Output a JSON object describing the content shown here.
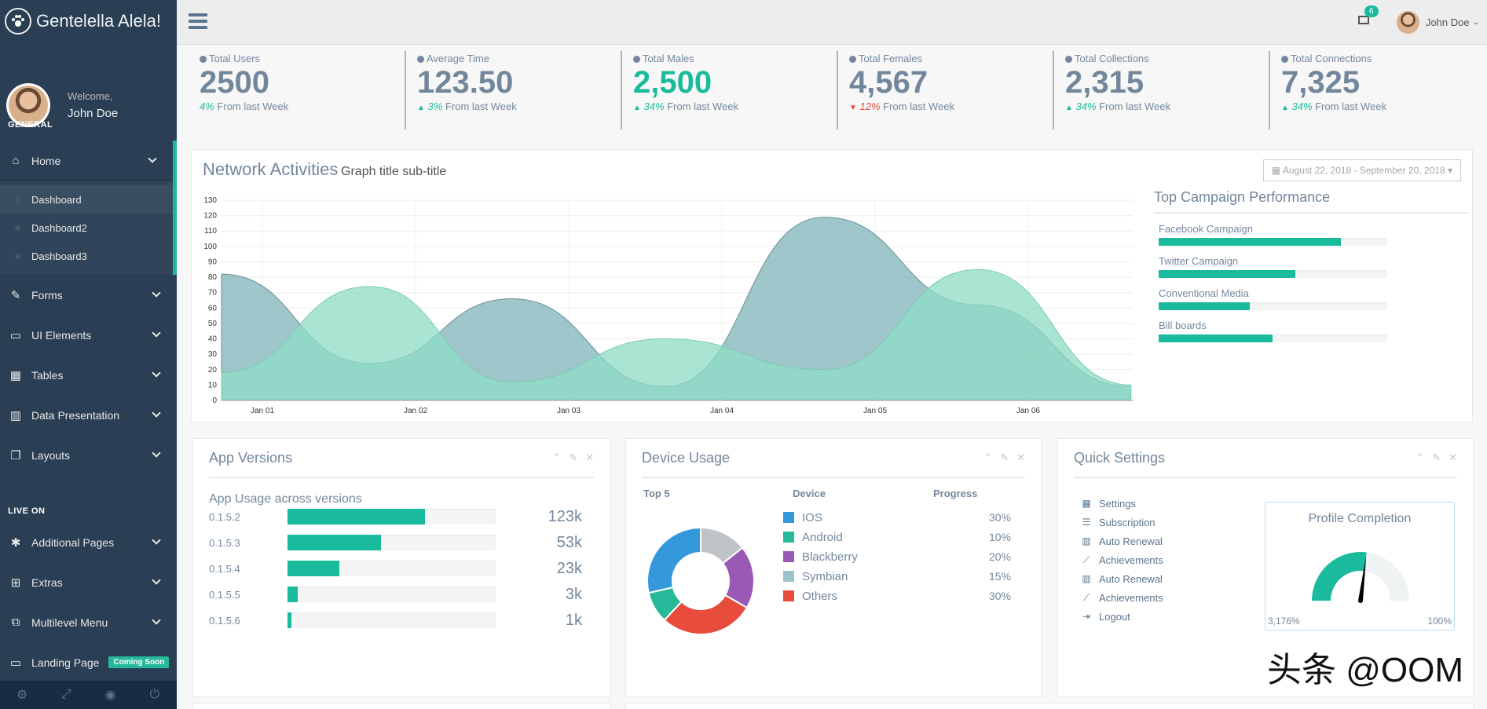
{
  "brand": {
    "title": "Gentelella Alela!"
  },
  "profile": {
    "welcome": "Welcome,",
    "name": "John Doe"
  },
  "sidebar": {
    "general_title": "GENERAL",
    "live_title": "LIVE ON",
    "home": {
      "label": "Home",
      "icon": "home-icon"
    },
    "home_sub": [
      {
        "label": "Dashboard"
      },
      {
        "label": "Dashboard2"
      },
      {
        "label": "Dashboard3"
      }
    ],
    "general_items": [
      {
        "label": "Forms",
        "icon": "edit-icon"
      },
      {
        "label": "UI Elements",
        "icon": "desktop-icon"
      },
      {
        "label": "Tables",
        "icon": "table-icon"
      },
      {
        "label": "Data Presentation",
        "icon": "bar-chart-icon"
      },
      {
        "label": "Layouts",
        "icon": "clone-icon"
      }
    ],
    "live_items": [
      {
        "label": "Additional Pages",
        "icon": "bug-icon"
      },
      {
        "label": "Extras",
        "icon": "windows-icon"
      },
      {
        "label": "Multilevel Menu",
        "icon": "sitemap-icon"
      }
    ],
    "landing": {
      "label": "Landing Page",
      "badge": "Coming Soon",
      "icon": "laptop-icon"
    },
    "footer_icons": [
      "settings-icon",
      "fullscreen-icon",
      "lock-icon",
      "logout-icon"
    ]
  },
  "topnav": {
    "mail_count": "6",
    "user": "John Doe"
  },
  "tiles": [
    {
      "label": "Total Users",
      "value": "2500",
      "change": "4%",
      "suffix": "From last Week",
      "trend": "none"
    },
    {
      "label": "Average Time",
      "value": "123.50",
      "change": "3%",
      "suffix": "From last Week",
      "trend": "up"
    },
    {
      "label": "Total Males",
      "value": "2,500",
      "change": "34%",
      "suffix": "From last Week",
      "trend": "up"
    },
    {
      "label": "Total Females",
      "value": "4,567",
      "change": "12%",
      "suffix": "From last Week",
      "trend": "down"
    },
    {
      "label": "Total Collections",
      "value": "2,315",
      "change": "34%",
      "suffix": "From last Week",
      "trend": "up"
    },
    {
      "label": "Total Connections",
      "value": "7,325",
      "change": "34%",
      "suffix": "From last Week",
      "trend": "up"
    }
  ],
  "network": {
    "title": "Network Activities",
    "subtitle": "Graph title sub-title",
    "daterange": "August 22, 2018 - September 20, 2018"
  },
  "chart_data": {
    "type": "area",
    "x": [
      "Jan 01",
      "Jan 02",
      "Jan 03",
      "Jan 04",
      "Jan 05",
      "Jan 06"
    ],
    "yticks": [
      0,
      10,
      20,
      30,
      40,
      50,
      60,
      70,
      80,
      90,
      100,
      110,
      120,
      130
    ],
    "ylim": [
      0,
      130
    ],
    "series": [
      {
        "color": "#7FB3B8",
        "points": [
          [
            -0.33,
            82
          ],
          [
            0.7,
            24
          ],
          [
            1.63,
            66
          ],
          [
            2.63,
            9
          ],
          [
            3.67,
            119
          ],
          [
            4.67,
            62
          ],
          [
            5.67,
            9
          ]
        ]
      },
      {
        "color": "#8EDCC6",
        "points": [
          [
            -0.33,
            18
          ],
          [
            0.7,
            74
          ],
          [
            1.63,
            12
          ],
          [
            2.63,
            40
          ],
          [
            3.67,
            20
          ],
          [
            4.67,
            85
          ],
          [
            5.67,
            10
          ]
        ]
      }
    ]
  },
  "campaigns": {
    "title": "Top Campaign Performance",
    "items": [
      {
        "label": "Facebook Campaign",
        "value": 80
      },
      {
        "label": "Twitter Campaign",
        "value": 60
      },
      {
        "label": "Conventional Media",
        "value": 40
      },
      {
        "label": "Bill boards",
        "value": 50
      }
    ]
  },
  "app_versions": {
    "title": "App Versions",
    "subtitle": "App Usage across versions",
    "rows": [
      {
        "version": "0.1.5.2",
        "count": "123k",
        "percent": 66
      },
      {
        "version": "0.1.5.3",
        "count": "53k",
        "percent": 45
      },
      {
        "version": "0.1.5.4",
        "count": "23k",
        "percent": 25
      },
      {
        "version": "0.1.5.5",
        "count": "3k",
        "percent": 5
      },
      {
        "version": "0.1.5.6",
        "count": "1k",
        "percent": 2
      }
    ]
  },
  "device_usage": {
    "title": "Device Usage",
    "headers": {
      "top": "Top 5",
      "device": "Device",
      "progress": "Progress"
    },
    "rows": [
      {
        "name": "IOS",
        "percent": "30%",
        "color": "#3498DB"
      },
      {
        "name": "Android",
        "percent": "10%",
        "color": "#26B99A"
      },
      {
        "name": "Blackberry",
        "percent": "20%",
        "color": "#9B59B6"
      },
      {
        "name": "Symbian",
        "percent": "15%",
        "color": "#9CC2CB"
      },
      {
        "name": "Others",
        "percent": "30%",
        "color": "#E74C3C"
      }
    ],
    "donut": [
      {
        "value": 15,
        "color": "#BDC3C7"
      },
      {
        "value": 20,
        "color": "#9B59B6"
      },
      {
        "value": 30,
        "color": "#E74C3C"
      },
      {
        "value": 10,
        "color": "#26B99A"
      },
      {
        "value": 30,
        "color": "#3498DB"
      }
    ]
  },
  "quick_settings": {
    "title": "Quick Settings",
    "items": [
      {
        "label": "Settings",
        "icon": "calendar-icon"
      },
      {
        "label": "Subscription",
        "icon": "bars-icon"
      },
      {
        "label": "Auto Renewal",
        "icon": "bar-chart-icon"
      },
      {
        "label": "Achievements",
        "icon": "line-chart-icon"
      },
      {
        "label": "Auto Renewal",
        "icon": "bar-chart-icon"
      },
      {
        "label": "Achievements",
        "icon": "line-chart-icon"
      },
      {
        "label": "Logout",
        "icon": "logout-icon"
      }
    ],
    "profile_completion": {
      "title": "Profile Completion",
      "min_label": "3,176%",
      "max_label": "100%",
      "value": 0.54
    }
  },
  "watermark": "头条 @OOM",
  "colors": {
    "accent": "#1ABB9C",
    "sidebar": "#2A3F54",
    "danger": "#E74C3C"
  }
}
